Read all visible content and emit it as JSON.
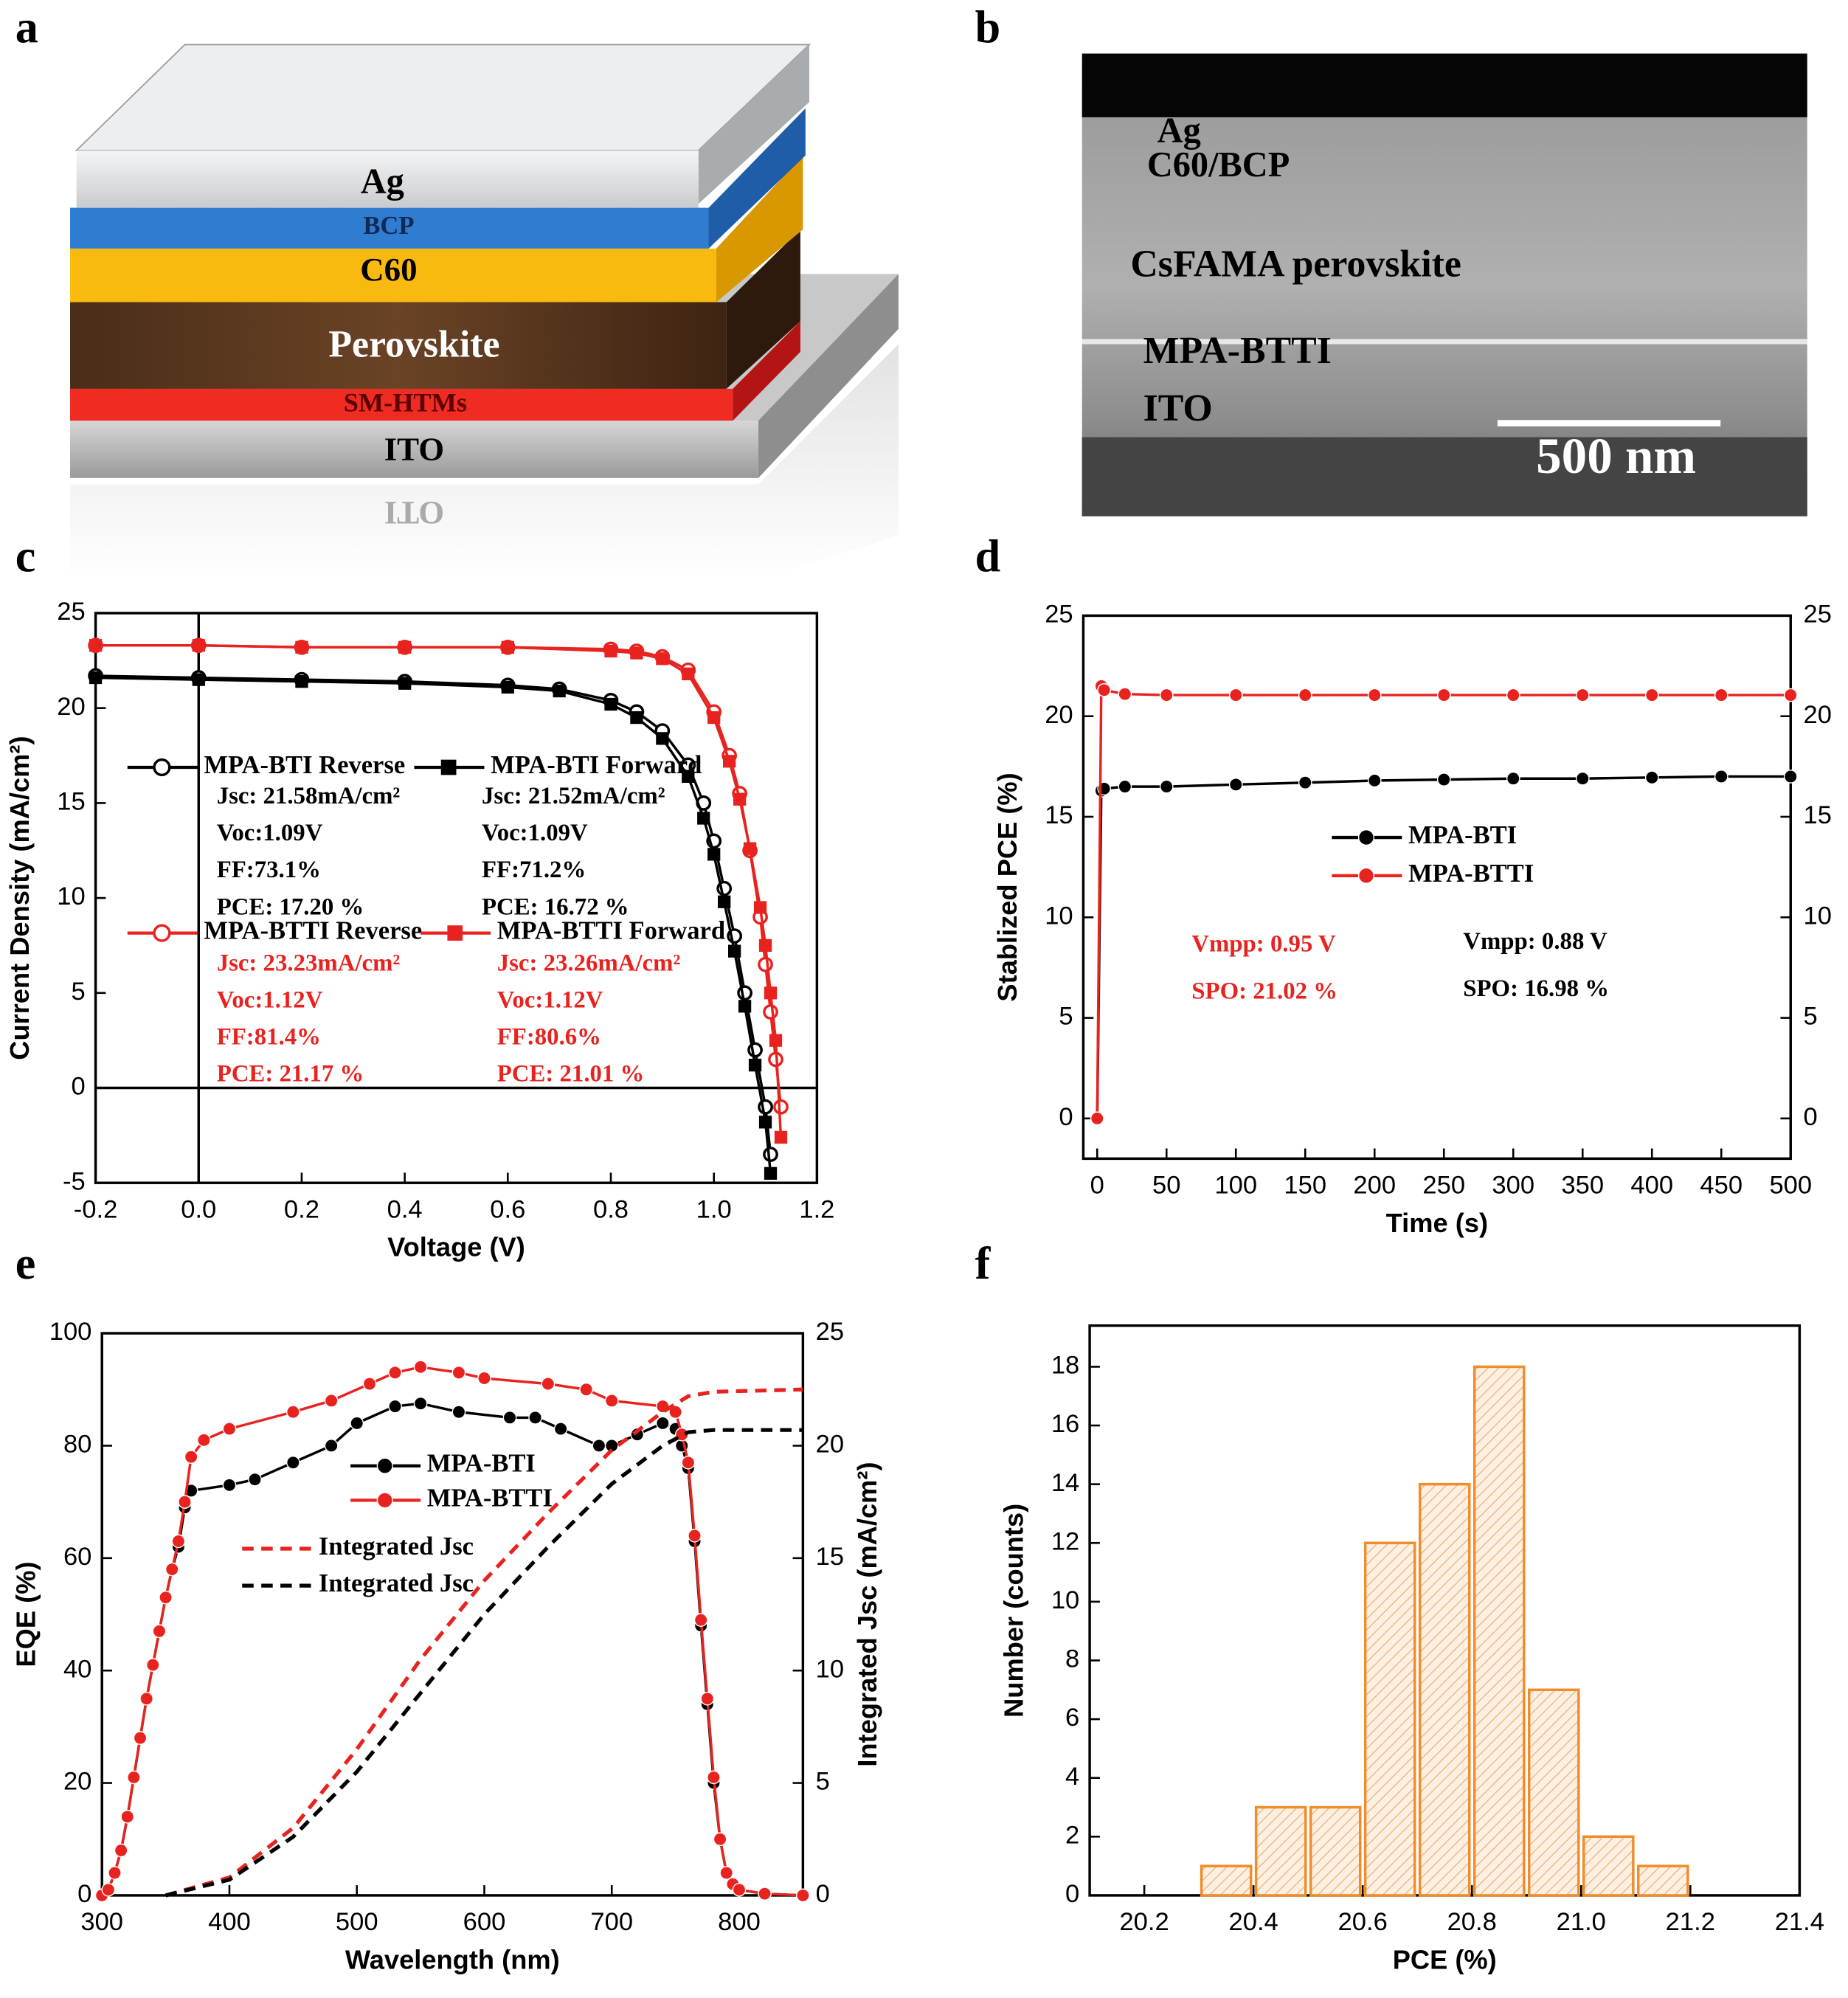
{
  "panel_labels": [
    "a",
    "b",
    "c",
    "d",
    "e",
    "f"
  ],
  "diagram": {
    "layers": [
      "Ag",
      "BCP",
      "C60",
      "Perovskite",
      "SM-HTMs",
      "ITO"
    ],
    "reflection": "ITO"
  },
  "image": {
    "labels": [
      "Ag",
      "C60/BCP",
      "CsFAMA perovskite",
      "MPA-BTTI",
      "ITO"
    ],
    "scale_bar": "500 nm"
  },
  "chart_data": [
    {
      "type": "line",
      "xlabel": "Voltage (V)",
      "ylabel": "Current Density (mA/cm²)",
      "xlim": [
        -0.2,
        1.2
      ],
      "ylim": [
        -5,
        25
      ],
      "xticks": [
        -0.2,
        {
          "value": 0,
          "label": "0.0"
        },
        0.2,
        0.4,
        0.6,
        0.8,
        {
          "value": 1,
          "label": "1.0"
        },
        1.2
      ],
      "yticks": [
        -5,
        0,
        5,
        10,
        15,
        20,
        25
      ],
      "zero_lines": true,
      "series": [
        {
          "name": "MPA-BTI Reverse",
          "color": "#000000",
          "marker": "open-circle",
          "x": [
            -0.2,
            0,
            0.2,
            0.4,
            0.6,
            0.7,
            0.8,
            0.85,
            0.9,
            0.95,
            0.98,
            1.0,
            1.02,
            1.04,
            1.06,
            1.08,
            1.1,
            1.11
          ],
          "values": [
            21.7,
            21.6,
            21.5,
            21.4,
            21.2,
            21.0,
            20.4,
            19.8,
            18.8,
            17,
            15,
            13,
            10.5,
            8,
            5,
            2,
            -1,
            -3.5
          ],
          "stats": [
            "Jsc: 21.58mA/cm²",
            "Voc:1.09V",
            "FF:73.1%",
            "PCE: 17.20 %"
          ]
        },
        {
          "name": "MPA-BTI Forward",
          "color": "#000000",
          "marker": "square",
          "x": [
            -0.2,
            0,
            0.2,
            0.4,
            0.6,
            0.7,
            0.8,
            0.85,
            0.9,
            0.95,
            0.98,
            1.0,
            1.02,
            1.04,
            1.06,
            1.08,
            1.1,
            1.11
          ],
          "values": [
            21.6,
            21.5,
            21.4,
            21.3,
            21.1,
            20.9,
            20.2,
            19.5,
            18.4,
            16.4,
            14.2,
            12.3,
            9.8,
            7.2,
            4.3,
            1.2,
            -1.8,
            -4.5
          ],
          "stats": [
            "Jsc: 21.52mA/cm²",
            "Voc:1.09V",
            "FF:71.2%",
            "PCE: 16.72 %"
          ]
        },
        {
          "name": "MPA-BTTI Reverse",
          "color": "#e8231f",
          "marker": "open-circle",
          "x": [
            -0.2,
            0,
            0.2,
            0.4,
            0.6,
            0.8,
            0.85,
            0.9,
            0.95,
            1.0,
            1.03,
            1.05,
            1.07,
            1.09,
            1.1,
            1.11,
            1.12,
            1.13
          ],
          "values": [
            23.3,
            23.3,
            23.2,
            23.2,
            23.2,
            23.1,
            23.0,
            22.7,
            22.0,
            19.8,
            17.5,
            15.5,
            12.5,
            9,
            6.5,
            4,
            1.5,
            -1
          ],
          "stats": [
            "Jsc: 23.23mA/cm²",
            "Voc:1.12V",
            "FF:81.4%",
            "PCE: 21.17 %"
          ]
        },
        {
          "name": "MPA-BTTI Forward",
          "color": "#e8231f",
          "marker": "square",
          "x": [
            -0.2,
            0,
            0.2,
            0.4,
            0.6,
            0.8,
            0.85,
            0.9,
            0.95,
            1.0,
            1.03,
            1.05,
            1.07,
            1.09,
            1.1,
            1.11,
            1.12,
            1.13
          ],
          "values": [
            23.3,
            23.3,
            23.2,
            23.2,
            23.2,
            23.0,
            22.9,
            22.6,
            21.8,
            19.5,
            17.2,
            15.2,
            12.6,
            9.5,
            7.5,
            5,
            2.5,
            -2.6
          ],
          "stats": [
            "Jsc: 23.26mA/cm²",
            "Voc:1.12V",
            "FF:80.6%",
            "PCE: 21.01 %"
          ]
        }
      ]
    },
    {
      "type": "line",
      "xlabel": "Time (s)",
      "ylabel": "Stablized PCE (%)",
      "xlim": [
        -10,
        500
      ],
      "ylim": [
        -2,
        25
      ],
      "y2lim": [
        -2,
        25
      ],
      "xticks": [
        0,
        50,
        100,
        150,
        200,
        250,
        300,
        350,
        400,
        450,
        500
      ],
      "yticks": [
        0,
        5,
        10,
        15,
        20,
        25
      ],
      "y2ticks": [
        0,
        5,
        10,
        15,
        20,
        25
      ],
      "series": [
        {
          "name": "MPA-BTI",
          "color": "#000000",
          "marker": "circle",
          "x": [
            0,
            3,
            5,
            20,
            50,
            100,
            150,
            200,
            250,
            300,
            350,
            400,
            450,
            500
          ],
          "values": [
            0,
            16.3,
            16.4,
            16.5,
            16.5,
            16.6,
            16.7,
            16.8,
            16.85,
            16.9,
            16.9,
            16.95,
            17.0,
            17.0
          ],
          "stats": [
            "Vmpp: 0.88 V",
            "SPO: 16.98 %"
          ]
        },
        {
          "name": "MPA-BTTI",
          "color": "#e8231f",
          "marker": "circle",
          "x": [
            0,
            3,
            5,
            20,
            50,
            100,
            150,
            200,
            250,
            300,
            350,
            400,
            450,
            500
          ],
          "values": [
            0,
            21.5,
            21.3,
            21.1,
            21.05,
            21.05,
            21.05,
            21.05,
            21.05,
            21.05,
            21.05,
            21.05,
            21.05,
            21.05
          ],
          "stats": [
            "Vmpp: 0.95 V",
            "SPO: 21.02 %"
          ]
        }
      ]
    },
    {
      "type": "line",
      "xlabel": "Wavelength (nm)",
      "ylabel": "EQE (%)",
      "y2label": "Integrated Jsc (mA/cm²)",
      "xlim": [
        300,
        850
      ],
      "ylim": [
        0,
        100
      ],
      "y2lim": [
        0,
        25
      ],
      "xticks": [
        300,
        400,
        500,
        600,
        700,
        800
      ],
      "yticks": [
        0,
        20,
        40,
        60,
        80,
        100
      ],
      "y2ticks": [
        0,
        5,
        10,
        15,
        20,
        25
      ],
      "series": [
        {
          "name": "MPA-BTI",
          "color": "#000000",
          "marker": "circle",
          "x": [
            300,
            305,
            310,
            315,
            320,
            325,
            330,
            335,
            340,
            345,
            350,
            355,
            360,
            365,
            370,
            400,
            420,
            450,
            480,
            500,
            530,
            550,
            580,
            620,
            640,
            660,
            690,
            700,
            720,
            740,
            750,
            755,
            760,
            765,
            770,
            775,
            780,
            785,
            790,
            795,
            800,
            820,
            850
          ],
          "values": [
            0,
            1,
            4,
            8,
            14,
            21,
            28,
            35,
            41,
            47,
            53,
            58,
            62,
            69,
            72,
            73,
            74,
            77,
            80,
            84,
            87,
            87.5,
            86,
            85,
            85,
            83,
            80,
            80,
            82,
            84,
            83,
            80,
            76,
            63,
            48,
            34,
            20,
            10,
            4,
            2,
            1,
            0.3,
            0
          ]
        },
        {
          "name": "MPA-BTTI",
          "color": "#e8231f",
          "marker": "circle",
          "x": [
            300,
            305,
            310,
            315,
            320,
            325,
            330,
            335,
            340,
            345,
            350,
            355,
            360,
            365,
            370,
            380,
            400,
            450,
            480,
            510,
            530,
            550,
            580,
            600,
            650,
            680,
            700,
            740,
            750,
            755,
            760,
            765,
            770,
            775,
            780,
            785,
            790,
            795,
            800,
            820,
            850
          ],
          "values": [
            0,
            1,
            4,
            8,
            14,
            21,
            28,
            35,
            41,
            47,
            53,
            58,
            63,
            70,
            78,
            81,
            83,
            86,
            88,
            91,
            93,
            94,
            93,
            92,
            91,
            90,
            88,
            87,
            86,
            82,
            77,
            64,
            49,
            35,
            21,
            10,
            4,
            2,
            1,
            0.3,
            0
          ]
        },
        {
          "name": "Integrated Jsc",
          "color": "#e8231f",
          "dash": true,
          "axis": "y2",
          "x": [
            350,
            400,
            450,
            500,
            550,
            600,
            650,
            700,
            740,
            760,
            780,
            850
          ],
          "values": [
            0,
            0.8,
            3,
            6.5,
            10.5,
            14,
            17,
            19.8,
            21.5,
            22.2,
            22.4,
            22.5
          ]
        },
        {
          "name": "Integrated Jsc",
          "color": "#000000",
          "dash": true,
          "axis": "y2",
          "x": [
            350,
            400,
            450,
            500,
            550,
            600,
            650,
            700,
            740,
            760,
            780,
            850
          ],
          "values": [
            0,
            0.7,
            2.6,
            5.5,
            9,
            12.5,
            15.5,
            18.3,
            20.0,
            20.6,
            20.7,
            20.7
          ]
        }
      ]
    },
    {
      "type": "histogram",
      "xlabel": "PCE (%)",
      "ylabel": "Number (counts)",
      "color": "#f08c2a",
      "xlim": [
        20.1,
        21.4
      ],
      "ylim": [
        0,
        19.4
      ],
      "xticks": [
        20.2,
        20.4,
        20.6,
        20.8,
        {
          "value": 21,
          "label": "21.0"
        },
        21.2,
        21.4
      ],
      "yticks": [
        0,
        2,
        4,
        6,
        8,
        10,
        12,
        14,
        16,
        18
      ],
      "bins": [
        20.3,
        20.4,
        20.5,
        20.6,
        20.7,
        20.8,
        20.9,
        21.0,
        21.1,
        21.2
      ],
      "counts": [
        1,
        3,
        3,
        12,
        14,
        18,
        7,
        2,
        1
      ]
    }
  ]
}
